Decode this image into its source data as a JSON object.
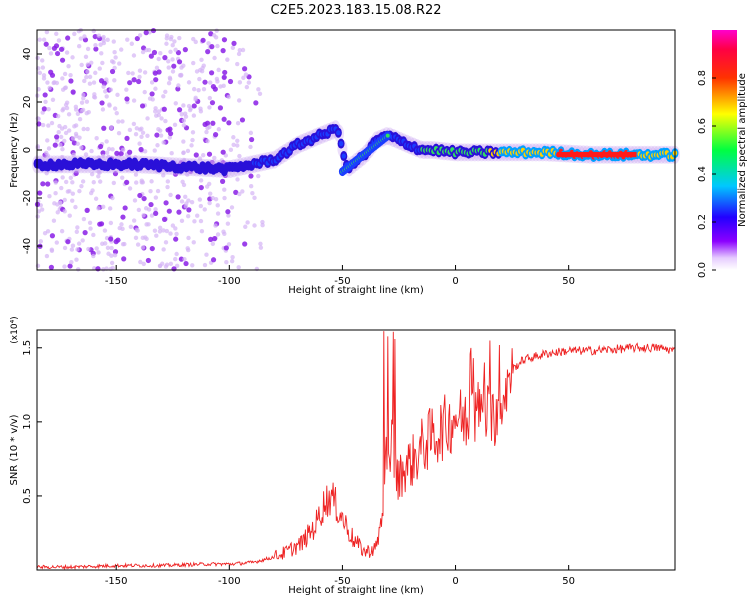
{
  "figure_title": "C2E5.2023.183.15.08.R22",
  "chart_data": [
    {
      "type": "heatmap",
      "title": "",
      "xlabel": "Height of straight line (km)",
      "ylabel": "Frequency (Hz)",
      "xlim": [
        -185,
        97
      ],
      "ylim": [
        -50,
        50
      ],
      "xticks": [
        -150,
        -100,
        -50,
        0,
        50
      ],
      "yticks": [
        -40,
        -20,
        0,
        20,
        40
      ],
      "colorbar": {
        "label": "Normalized spectral amplitude",
        "range": [
          0,
          1
        ],
        "ticks": [
          "0.0",
          "0.2",
          "0.4",
          "0.6",
          "0.8"
        ],
        "colormap": "rainbow (white-violet-blue-cyan-green-yellow-red-magenta)"
      },
      "ridge": {
        "description": "spectral trace of signal frequency vs height",
        "x": [
          -185,
          -160,
          -140,
          -120,
          -100,
          -90,
          -80,
          -70,
          -60,
          -52,
          -48,
          -44,
          -40,
          -35,
          -30,
          -25,
          -20,
          -15,
          -10,
          0,
          10,
          20,
          40,
          60,
          80,
          97
        ],
        "y": [
          -6,
          -6,
          -6,
          -7,
          -8,
          -6,
          -4,
          2,
          6,
          9,
          -8,
          -5,
          -2,
          4,
          6,
          4,
          2,
          0,
          0,
          -1,
          -1,
          -1,
          -1,
          -2,
          -2,
          -2
        ]
      }
    },
    {
      "type": "line",
      "title": "",
      "xlabel": "Height of straight line (km)",
      "ylabel": "SNR (10 * v/v)",
      "y_scale_note": "(x10⁴)",
      "xlim": [
        -185,
        97
      ],
      "ylim": [
        0,
        1.62
      ],
      "xticks": [
        -150,
        -100,
        -50,
        0,
        50
      ],
      "yticks": [
        "0.5",
        "1.0",
        "1.5"
      ],
      "series": [
        {
          "color": "#ee2222",
          "x": [
            -185,
            -170,
            -150,
            -130,
            -110,
            -100,
            -90,
            -82,
            -75,
            -68,
            -62,
            -58,
            -55,
            -50,
            -45,
            -40,
            -35,
            -32,
            -30,
            -28,
            -26,
            -22,
            -18,
            -14,
            -10,
            -6,
            -2,
            0,
            4,
            8,
            12,
            16,
            20,
            25,
            30,
            40,
            50,
            60,
            70,
            80,
            90,
            97
          ],
          "y": [
            0.02,
            0.02,
            0.03,
            0.03,
            0.04,
            0.04,
            0.05,
            0.08,
            0.12,
            0.18,
            0.3,
            0.45,
            0.5,
            0.35,
            0.2,
            0.12,
            0.15,
            0.4,
            0.9,
            0.85,
            0.6,
            0.7,
            0.75,
            0.85,
            0.9,
            0.95,
            1.0,
            1.05,
            1.0,
            1.05,
            1.1,
            1.0,
            1.15,
            1.35,
            1.42,
            1.46,
            1.48,
            1.48,
            1.49,
            1.5,
            1.5,
            1.48
          ]
        }
      ]
    }
  ]
}
